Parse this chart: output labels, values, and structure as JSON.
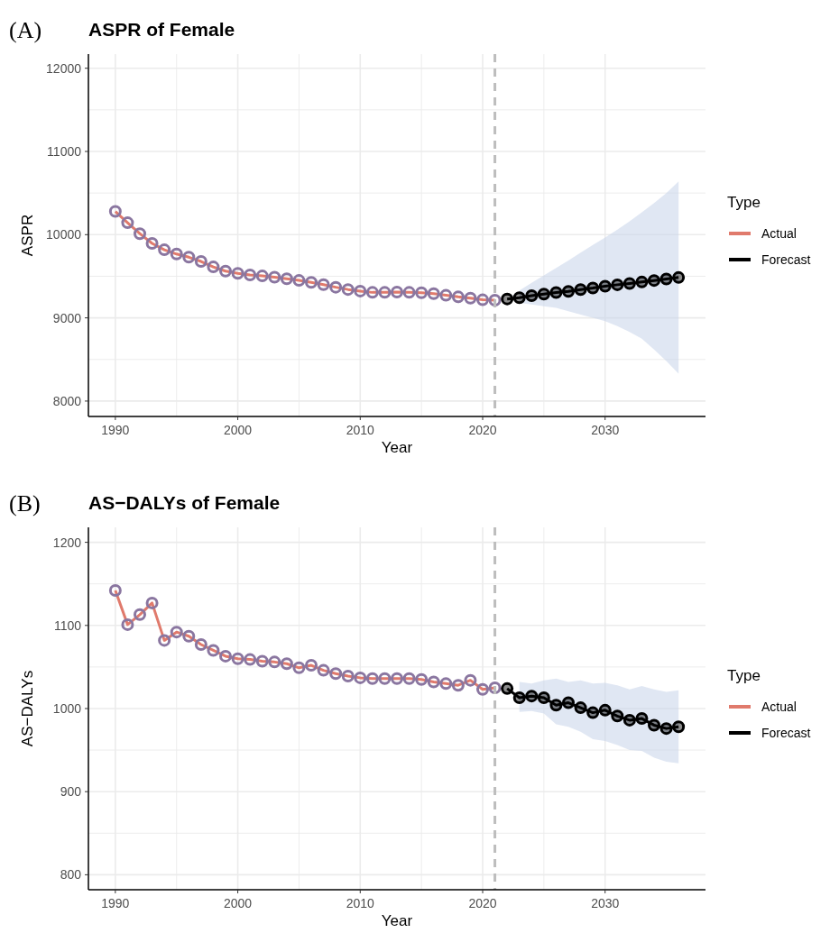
{
  "chart_data": [
    {
      "type": "line",
      "title": "ASPR of Female",
      "annotations": [
        "(A)"
      ],
      "xlabel": "Year",
      "ylabel": "ASPR",
      "legend_title": "Type",
      "legend": "right",
      "grid": true,
      "marker": "circle",
      "xlim": [
        1987.8,
        2038.2
      ],
      "xticks": [
        1990,
        2000,
        2010,
        2020,
        2030
      ],
      "ylim": [
        7815,
        12170
      ],
      "yticks": [
        8000,
        9000,
        10000,
        11000,
        12000
      ],
      "ref_lines": [
        {
          "axis": "x",
          "value": 2021,
          "color": "#bdbdbd",
          "line_style": "dashed"
        }
      ],
      "series": [
        {
          "name": "Actual",
          "color": "#e07a6c",
          "x": [
            1990,
            1991,
            1992,
            1993,
            1994,
            1995,
            1996,
            1997,
            1998,
            1999,
            2000,
            2001,
            2002,
            2003,
            2004,
            2005,
            2006,
            2007,
            2008,
            2009,
            2010,
            2011,
            2012,
            2013,
            2014,
            2015,
            2016,
            2017,
            2018,
            2019,
            2020,
            2021
          ],
          "values": [
            10279,
            10143,
            10012,
            9895,
            9818,
            9767,
            9729,
            9678,
            9612,
            9562,
            9535,
            9516,
            9504,
            9488,
            9469,
            9450,
            9426,
            9399,
            9368,
            9341,
            9322,
            9306,
            9306,
            9310,
            9306,
            9302,
            9291,
            9271,
            9252,
            9237,
            9217,
            9213
          ]
        },
        {
          "name": "Forecast",
          "color": "#000000",
          "x": [
            2022,
            2023,
            2024,
            2025,
            2026,
            2027,
            2028,
            2029,
            2030,
            2031,
            2032,
            2033,
            2034,
            2035,
            2036
          ],
          "values": [
            9227,
            9242,
            9267,
            9285,
            9304,
            9318,
            9340,
            9358,
            9380,
            9398,
            9413,
            9431,
            9449,
            9467,
            9485
          ],
          "lower": [
            null,
            9180,
            9160,
            9140,
            9120,
            9080,
            9040,
            9000,
            8960,
            8900,
            8830,
            8750,
            8620,
            8480,
            8330
          ],
          "upper": [
            null,
            9330,
            9420,
            9510,
            9600,
            9690,
            9785,
            9875,
            9965,
            10060,
            10160,
            10270,
            10380,
            10500,
            10640
          ]
        }
      ]
    },
    {
      "type": "line",
      "title": "AS−DALYs of Female",
      "annotations": [
        "(B)"
      ],
      "xlabel": "Year",
      "ylabel": "AS−DALYs",
      "legend_title": "Type",
      "legend": "right",
      "grid": true,
      "marker": "circle",
      "xlim": [
        1987.8,
        2038.2
      ],
      "xticks": [
        1990,
        2000,
        2010,
        2020,
        2030
      ],
      "ylim": [
        782,
        1218
      ],
      "yticks": [
        800,
        900,
        1000,
        1100,
        1200
      ],
      "ref_lines": [
        {
          "axis": "x",
          "value": 2021,
          "color": "#bdbdbd",
          "line_style": "dashed"
        }
      ],
      "series": [
        {
          "name": "Actual",
          "color": "#e07a6c",
          "x": [
            1990,
            1991,
            1992,
            1993,
            1994,
            1995,
            1996,
            1997,
            1998,
            1999,
            2000,
            2001,
            2002,
            2003,
            2004,
            2005,
            2006,
            2007,
            2008,
            2009,
            2010,
            2011,
            2012,
            2013,
            2014,
            2015,
            2016,
            2017,
            2018,
            2019,
            2020,
            2021
          ],
          "values": [
            1142,
            1101,
            1113,
            1127,
            1082,
            1092,
            1087,
            1077,
            1070,
            1063,
            1060,
            1059,
            1057,
            1056,
            1054,
            1049,
            1052,
            1046,
            1042,
            1039,
            1037,
            1036,
            1036,
            1036,
            1036,
            1035,
            1032,
            1030,
            1028,
            1034,
            1023,
            1025
          ]
        },
        {
          "name": "Forecast",
          "color": "#000000",
          "x": [
            2022,
            2023,
            2024,
            2025,
            2026,
            2027,
            2028,
            2029,
            2030,
            2031,
            2032,
            2033,
            2034,
            2035,
            2036
          ],
          "values": [
            1024,
            1013,
            1015,
            1013,
            1004,
            1007,
            1001,
            995,
            998,
            991,
            986,
            988,
            980,
            976,
            978
          ],
          "lower": [
            null,
            996,
            997,
            994,
            981,
            978,
            972,
            963,
            961,
            956,
            950,
            949,
            941,
            936,
            934
          ],
          "upper": [
            null,
            1032,
            1030,
            1034,
            1036,
            1032,
            1034,
            1030,
            1031,
            1028,
            1023,
            1027,
            1023,
            1020,
            1022
          ]
        }
      ]
    }
  ]
}
